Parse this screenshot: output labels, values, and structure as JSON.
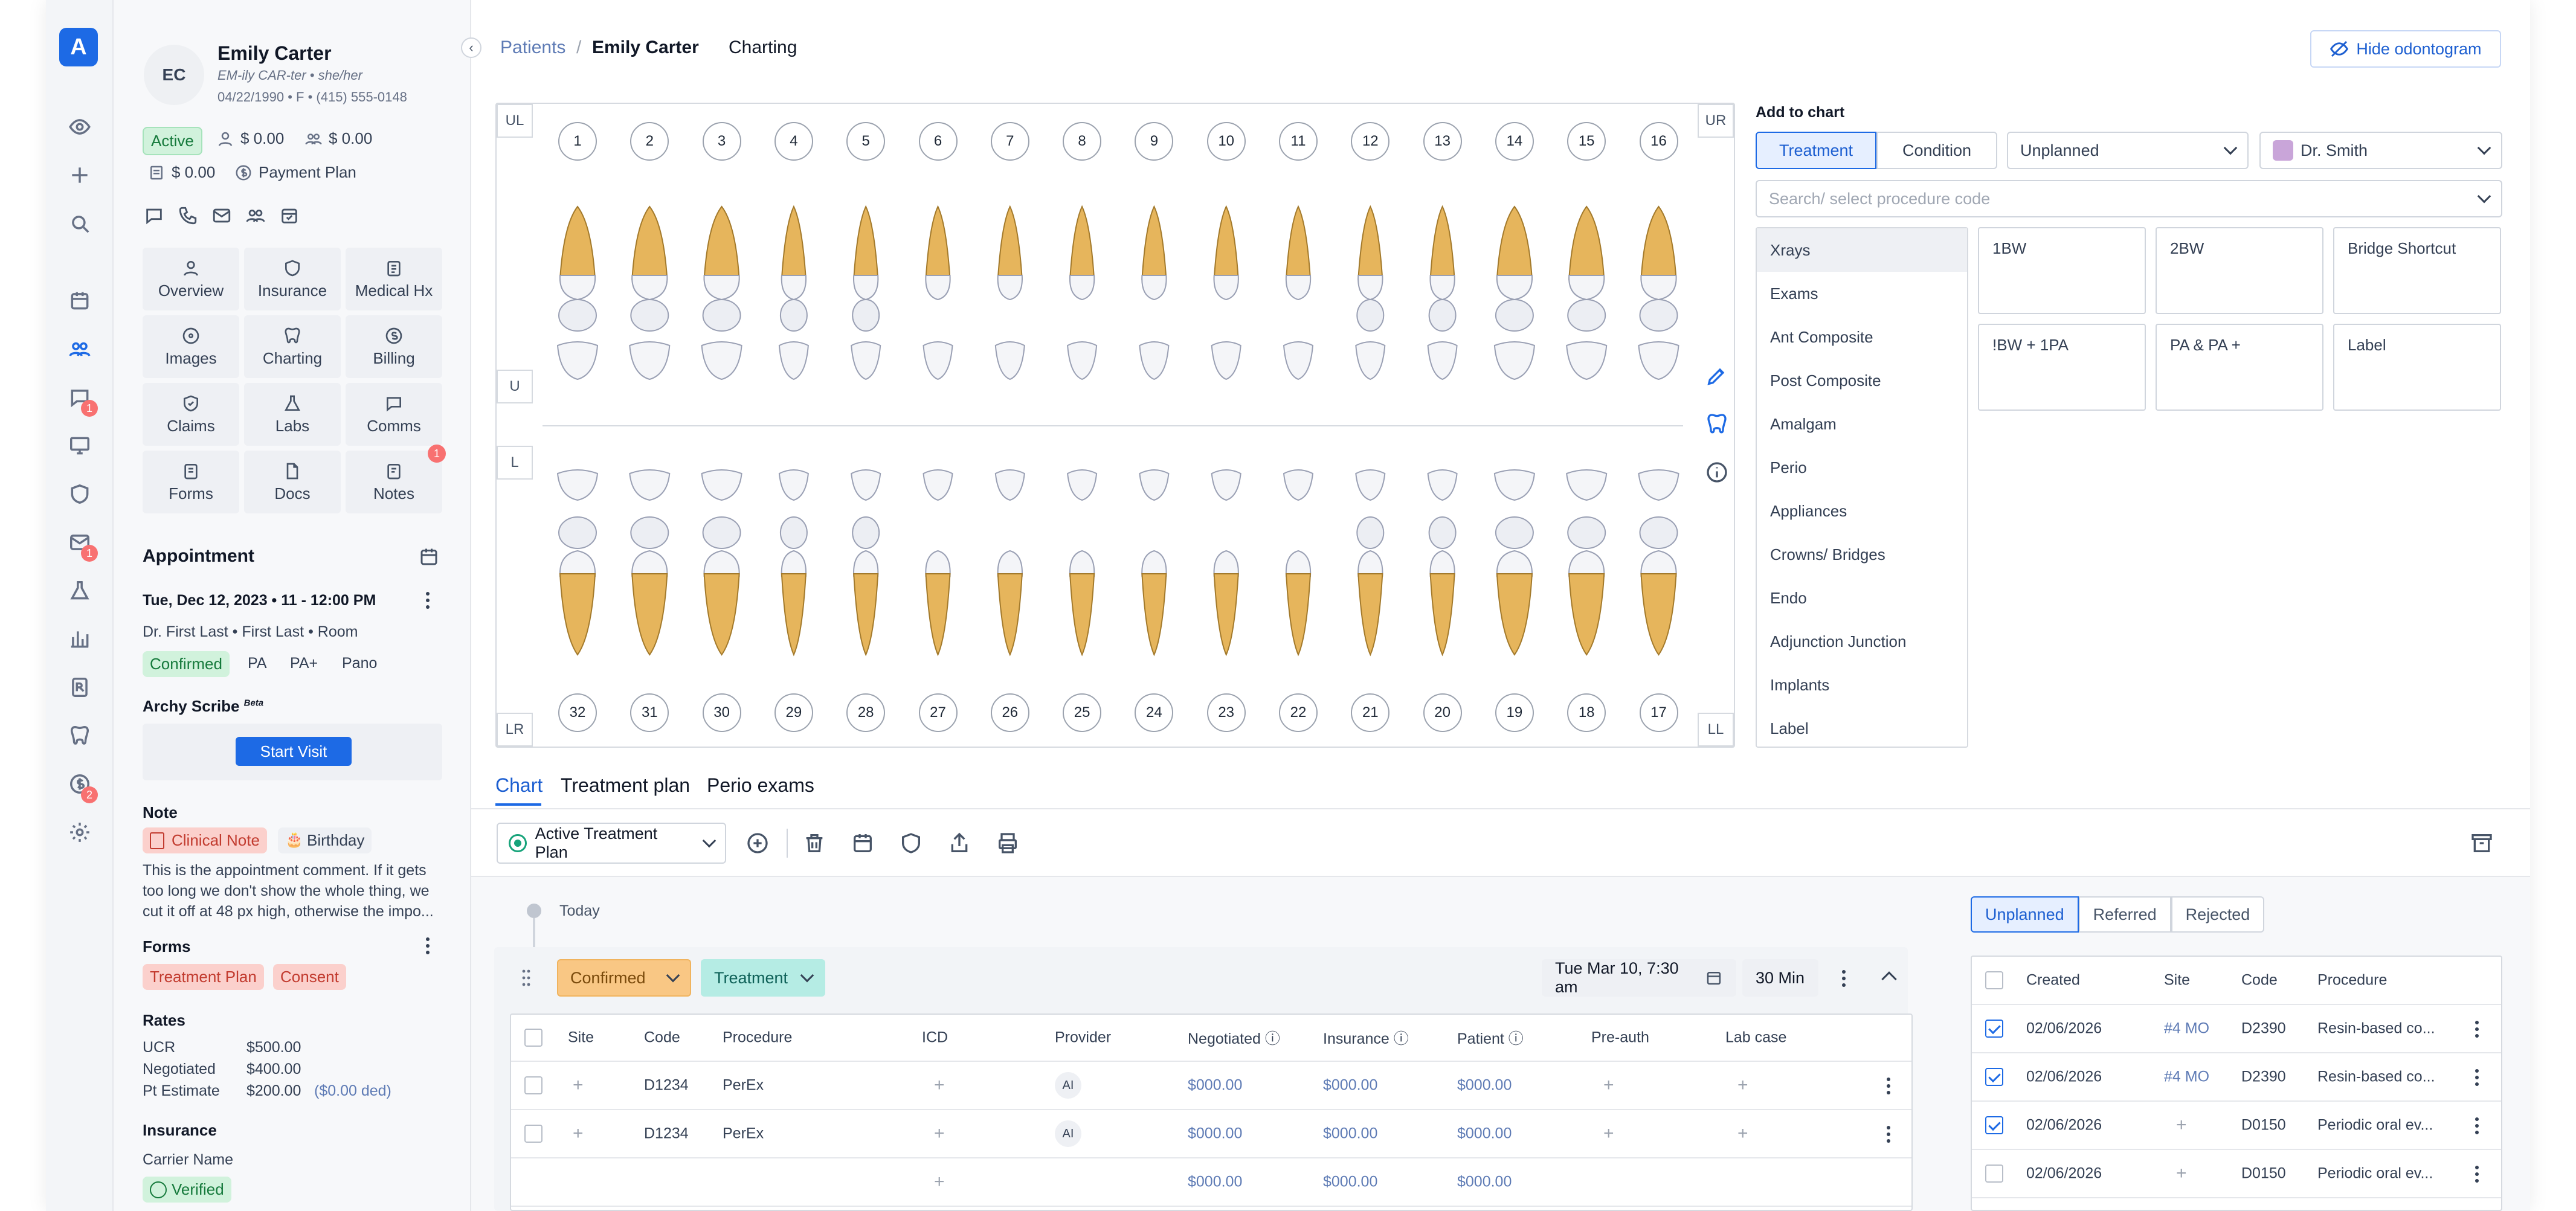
{
  "breadcrumb": {
    "root": "Patients",
    "sep": "/",
    "patient": "Emily Carter",
    "page": "Charting"
  },
  "hide_odontogram": "Hide odontogram",
  "patient": {
    "initials": "EC",
    "name": "Emily Carter",
    "phonetic": "EM-ily CAR-ter • she/her",
    "info": "04/22/1990 • F • (415) 555-0148",
    "status": "Active",
    "balance1": "$ 0.00",
    "balance2": "$ 0.00",
    "balance3": "$ 0.00",
    "payment_plan": "Payment Plan"
  },
  "tiles": [
    "Overview",
    "Insurance",
    "Medical Hx",
    "Images",
    "Charting",
    "Billing",
    "Claims",
    "Labs",
    "Comms",
    "Forms",
    "Docs",
    "Notes"
  ],
  "notes_badge": "1",
  "appointment": {
    "title": "Appointment",
    "datetime": "Tue, Dec 12, 2023 • 11 - 12:00 PM",
    "who": "Dr. First Last • First Last • Room",
    "status": "Confirmed",
    "tags": [
      "PA",
      "PA+",
      "Pano"
    ]
  },
  "scribe": {
    "title": "Archy Scribe",
    "beta": "Beta",
    "button": "Start Visit"
  },
  "note": {
    "title": "Note",
    "clinical": "Clinical Note",
    "birthday": "Birthday",
    "body": [
      "This is the appointment comment. If it gets",
      "too long we don't show the whole thing, we",
      "cut it off at 48 px high, otherwise the impo..."
    ]
  },
  "forms": {
    "title": "Forms",
    "items": [
      "Treatment Plan",
      "Consent"
    ]
  },
  "rates": {
    "title": "Rates",
    "rows": [
      {
        "label": "UCR",
        "value": "$500.00",
        "extra": ""
      },
      {
        "label": "Negotiated",
        "value": "$400.00",
        "extra": ""
      },
      {
        "label": "Pt Estimate",
        "value": "$200.00",
        "extra": "($0.00 ded)"
      }
    ]
  },
  "insurance": {
    "title": "Insurance",
    "carrier": "Carrier Name",
    "verified": "Verified"
  },
  "rail_badges": [
    "1",
    "1",
    "2"
  ],
  "odontogram": {
    "corners": [
      "UL",
      "UR",
      "LR",
      "LL"
    ],
    "upper": [
      "1",
      "2",
      "3",
      "4",
      "5",
      "6",
      "7",
      "8",
      "9",
      "10",
      "11",
      "12",
      "13",
      "14",
      "15",
      "16"
    ],
    "lower": [
      "32",
      "31",
      "30",
      "29",
      "28",
      "27",
      "26",
      "25",
      "24",
      "23",
      "22",
      "21",
      "20",
      "19",
      "18",
      "17"
    ],
    "u_label": "U",
    "l_label": "L"
  },
  "add_to_chart": {
    "title": "Add to chart",
    "treatment": "Treatment",
    "condition": "Condition",
    "status": "Unplanned",
    "provider": "Dr. Smith",
    "search_placeholder": "Search/ select procedure code"
  },
  "categories": [
    "Xrays",
    "Exams",
    "Ant Composite",
    "Post Composite",
    "Amalgam",
    "Perio",
    "Appliances",
    "Crowns/ Bridges",
    "Endo",
    "Adjunction Junction",
    "Implants",
    "Label"
  ],
  "shortcuts": [
    "1BW",
    "2BW",
    "Bridge Shortcut",
    "!BW + 1PA",
    "PA & PA +",
    "Label"
  ],
  "tabs": [
    "Chart",
    "Treatment plan",
    "Perio exams"
  ],
  "plan_selector": "Active Treatment Plan",
  "today": "Today",
  "visit": {
    "status": "Confirmed",
    "type": "Treatment",
    "date": "Tue Mar 10, 7:30 am",
    "duration": "30 Min"
  },
  "table": {
    "headers": [
      "Site",
      "Code",
      "Procedure",
      "ICD",
      "Provider",
      "Negotiated",
      "Insurance",
      "Patient",
      "Pre-auth",
      "Lab case"
    ],
    "rows": [
      {
        "code": "D1234",
        "procedure": "PerEx",
        "provider": "AI",
        "negotiated": "$000.00",
        "insurance": "$000.00",
        "patient": "$000.00"
      },
      {
        "code": "D1234",
        "procedure": "PerEx",
        "provider": "AI",
        "negotiated": "$000.00",
        "insurance": "$000.00",
        "patient": "$000.00"
      }
    ],
    "totals": {
      "negotiated": "$000.00",
      "insurance": "$000.00",
      "patient": "$000.00"
    }
  },
  "right_tabs": [
    "Unplanned",
    "Referred",
    "Rejected"
  ],
  "right_table": {
    "headers": [
      "Created",
      "Site",
      "Code",
      "Procedure"
    ],
    "rows": [
      {
        "checked": true,
        "created": "02/06/2026",
        "site": "#4 MO",
        "code": "D2390",
        "procedure": "Resin-based co..."
      },
      {
        "checked": true,
        "created": "02/06/2026",
        "site": "#4 MO",
        "code": "D2390",
        "procedure": "Resin-based co..."
      },
      {
        "checked": true,
        "created": "02/06/2026",
        "site": "",
        "code": "D0150",
        "procedure": "Periodic oral ev..."
      },
      {
        "checked": false,
        "created": "02/06/2026",
        "site": "",
        "code": "D0150",
        "procedure": "Periodic oral ev..."
      }
    ]
  },
  "colors": {
    "primary": "#1d6ae5",
    "active_bg": "#d1f2dc",
    "confirmed": "#f9c784",
    "treatment": "#b5ece4",
    "clinical": "#fbd0cc"
  }
}
